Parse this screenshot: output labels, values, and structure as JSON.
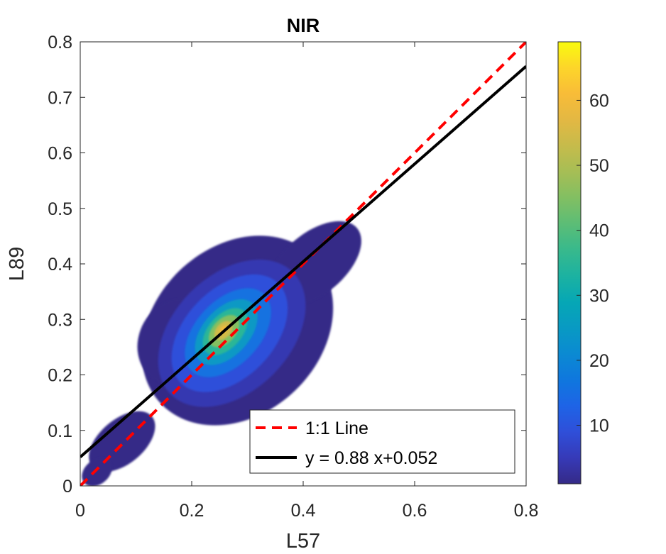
{
  "chart_data": {
    "type": "scatter",
    "title": "NIR",
    "xlabel": "L57",
    "ylabel": "L89",
    "xlim": [
      0,
      0.8
    ],
    "ylim": [
      0,
      0.8
    ],
    "xticks": [
      0,
      0.2,
      0.4,
      0.6,
      0.8
    ],
    "yticks": [
      0,
      0.1,
      0.2,
      0.3,
      0.4,
      0.5,
      0.6,
      0.7,
      0.8
    ],
    "xtick_labels": [
      "0",
      "0.2",
      "0.4",
      "0.6",
      "0.8"
    ],
    "ytick_labels": [
      "0",
      "0.1",
      "0.2",
      "0.3",
      "0.4",
      "0.5",
      "0.6",
      "0.7",
      "0.8"
    ],
    "grid": false,
    "density": {
      "description": "point density scatter (parula colormap)",
      "peak_center": [
        0.26,
        0.28
      ],
      "min_count": 1,
      "max_count": 69
    },
    "lines": [
      {
        "name": "1:1 Line",
        "style": "dashed",
        "color": "#ff0000",
        "slope": 1,
        "intercept": 0
      },
      {
        "name": "y = 0.88 x+0.052",
        "style": "solid",
        "color": "#000000",
        "slope": 0.88,
        "intercept": 0.052
      }
    ],
    "legend": {
      "position": "bottom-right",
      "entries": [
        "1:1 Line",
        "y = 0.88 x+0.052"
      ]
    },
    "colorbar": {
      "colormap": "parula",
      "range": [
        1,
        69
      ],
      "ticks": [
        10,
        20,
        30,
        40,
        50,
        60
      ],
      "tick_labels": [
        "10",
        "20",
        "30",
        "40",
        "50",
        "60"
      ]
    }
  },
  "colors": {
    "parula": [
      "#352a87",
      "#363ab8",
      "#2f4fd9",
      "#1e64e6",
      "#0f77de",
      "#0b8ad2",
      "#089ac3",
      "#06a7b5",
      "#1cb2a1",
      "#38b98c",
      "#5cbd76",
      "#82bf62",
      "#a6be55",
      "#c6bb4b",
      "#e3b843",
      "#f8bc38",
      "#fdd52a",
      "#f9fb0e"
    ]
  }
}
